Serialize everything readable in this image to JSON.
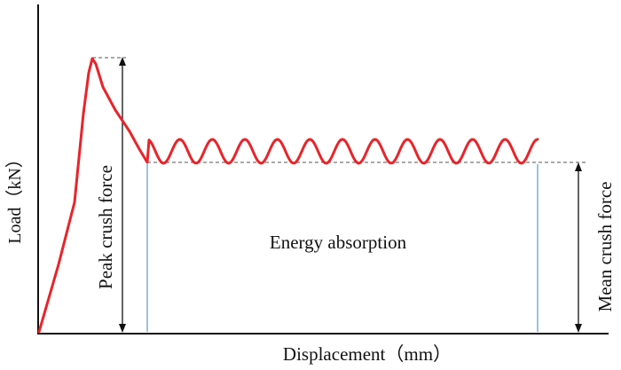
{
  "chart_data": {
    "type": "line",
    "xlabel": "Displacement（mm）",
    "ylabel": "Load（kN）",
    "annotations": {
      "peak": "Peak crush force",
      "mean": "Mean crush force",
      "energy": "Energy absorption"
    },
    "grid": false,
    "legend": "none",
    "colors": {
      "curve": "#e8242a",
      "axis": "#111111",
      "dashed": "#555555",
      "region_edge": "#9cc3e0"
    }
  }
}
